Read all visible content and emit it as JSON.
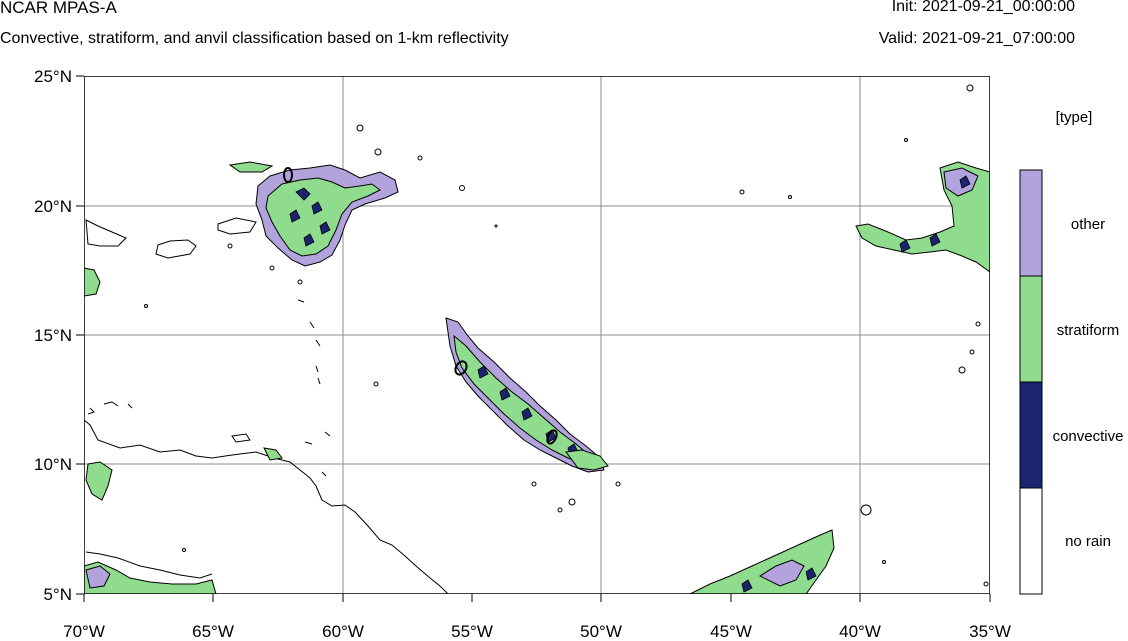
{
  "header": {
    "model": "NCAR MPAS-A",
    "subtitle": "Convective, stratiform, and anvil classification based on 1-km reflectivity",
    "init": "Init: 2021-09-21_00:00:00",
    "valid": "Valid: 2021-09-21_07:00:00"
  },
  "map": {
    "lat_labels": [
      "25°N",
      "20°N",
      "15°N",
      "10°N",
      "5°N"
    ],
    "lon_labels": [
      "70°W",
      "65°W",
      "60°W",
      "55°W",
      "50°W",
      "45°W",
      "40°W",
      "35°W"
    ],
    "lon_range": [
      -70,
      -35
    ],
    "lat_range": [
      5,
      25
    ],
    "grid": true
  },
  "legend": {
    "title": "[type]",
    "items": [
      {
        "label": "other",
        "color": "#b3a3dc"
      },
      {
        "label": "stratiform",
        "color": "#8fdc8f"
      },
      {
        "label": "convective",
        "color": "#1a2470"
      },
      {
        "label": "no rain",
        "color": "#ffffff"
      }
    ]
  }
}
